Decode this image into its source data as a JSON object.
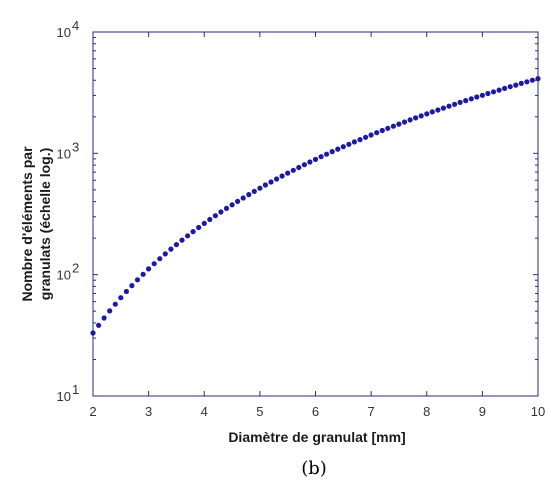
{
  "chart_data": {
    "type": "scatter",
    "xlabel": "Diamètre de granulat [mm]",
    "ylabel_line1": "Nombre d'éléments par",
    "ylabel_line2": "granulats (échelle log.)",
    "caption": "(b)",
    "xlim": [
      2,
      10
    ],
    "ylim": [
      10,
      10000
    ],
    "yscale": "log",
    "grid": false,
    "xticks": [
      2,
      3,
      4,
      5,
      6,
      7,
      8,
      9,
      10
    ],
    "xtick_labels": [
      "2",
      "3",
      "4",
      "5",
      "6",
      "7",
      "8",
      "9",
      "10"
    ],
    "yticks": [
      10,
      100,
      1000,
      10000
    ],
    "ytick_labels": [
      {
        "base": "10",
        "exp": "1"
      },
      {
        "base": "10",
        "exp": "2"
      },
      {
        "base": "10",
        "exp": "3"
      },
      {
        "base": "10",
        "exp": "4"
      }
    ],
    "x_start": 2,
    "x_end": 10,
    "x_step": 0.1,
    "model": {
      "c": 4.13,
      "p": 3
    },
    "marker_color": "#1a1aa6",
    "axis_color": "#2a2a80"
  }
}
